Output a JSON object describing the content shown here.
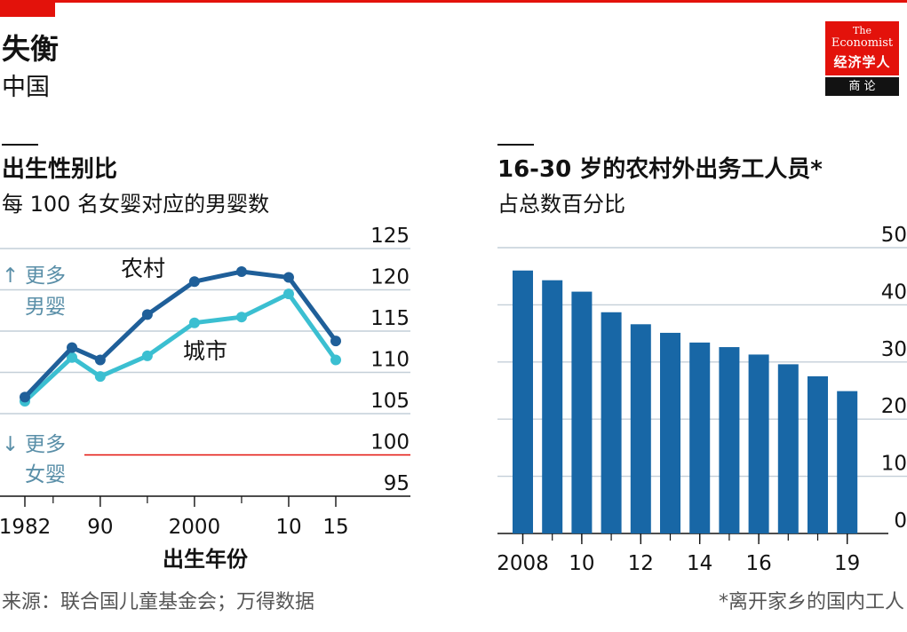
{
  "header": {
    "title": "失衡",
    "subtitle": "中国"
  },
  "logo": {
    "line1": "The",
    "line2": "Economist",
    "line3": "经济学人",
    "line4": "商 论"
  },
  "colors": {
    "accent_red": "#e3120b",
    "rural_line": "#1f5f99",
    "urban_line": "#3bbfd1",
    "bar": "#1867a6",
    "annotation": "#5a8fa8",
    "grid": "#c4cfd8"
  },
  "left_panel": {
    "title": "出生性别比",
    "subtitle": "每 100 名女婴对应的男婴数",
    "more_boys": {
      "arrow": "↑",
      "line1": "更多",
      "line2": "男婴"
    },
    "more_girls": {
      "arrow": "↓",
      "line1": "更多",
      "line2": "女婴"
    },
    "xlabel": "出生年份"
  },
  "right_panel": {
    "title": "16-30 岁的农村外出务工人员*",
    "subtitle": "占总数百分比"
  },
  "source": "来源：联合国儿童基金会；万得数据",
  "footnote": "*离开家乡的国内工人",
  "chart_data": [
    {
      "type": "line",
      "title": "出生性别比",
      "subtitle": "每 100 名女婴对应的男婴数",
      "xlabel": "出生年份",
      "ylim": [
        95,
        125
      ],
      "yticks": [
        95,
        100,
        105,
        110,
        115,
        120,
        125
      ],
      "xticks": [
        1982,
        1990,
        2000,
        2010,
        2015
      ],
      "xtick_labels": [
        "1982",
        "90",
        "2000",
        "10",
        "15"
      ],
      "reference_line": 100,
      "series": [
        {
          "name": "农村",
          "x": [
            1982,
            1987,
            1990,
            1995,
            2000,
            2005,
            2010,
            2015
          ],
          "y": [
            107,
            113,
            111.5,
            117,
            121,
            122.2,
            121.5,
            113.8
          ]
        },
        {
          "name": "城市",
          "x": [
            1982,
            1987,
            1990,
            1995,
            2000,
            2005,
            2010,
            2015
          ],
          "y": [
            106.5,
            111.8,
            109.5,
            112,
            116,
            116.7,
            119.5,
            111.5
          ]
        }
      ]
    },
    {
      "type": "bar",
      "title": "16-30 岁的农村外出务工人员*",
      "subtitle": "占总数百分比",
      "ylim": [
        0,
        50
      ],
      "yticks": [
        0,
        10,
        20,
        30,
        40,
        50
      ],
      "categories": [
        "2008",
        "2009",
        "2010",
        "2011",
        "2012",
        "2013",
        "2014",
        "2015",
        "2016",
        "2017",
        "2018",
        "2019"
      ],
      "xtick_labels": [
        "2008",
        "10",
        "12",
        "14",
        "16",
        "19"
      ],
      "values": [
        46,
        44.3,
        42.3,
        38.7,
        36.6,
        35.1,
        33.4,
        32.6,
        31.3,
        29.6,
        27.5,
        24.9
      ]
    }
  ]
}
